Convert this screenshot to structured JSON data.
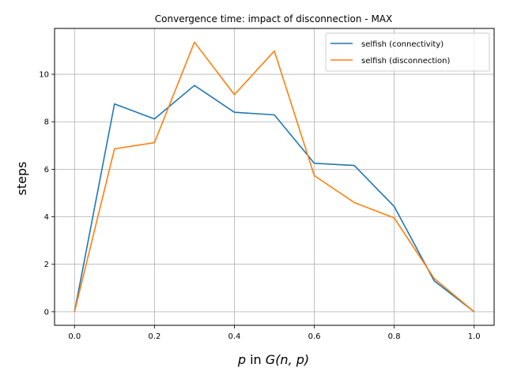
{
  "chart_data": {
    "type": "line",
    "title": "Convergence time: impact of disconnection - MAX",
    "xlabel": {
      "main": "p",
      "mid": " in ",
      "func": "G",
      "args": "(n, p)"
    },
    "ylabel": "steps",
    "xlim": [
      -0.05,
      1.05
    ],
    "ylim": [
      -0.57,
      11.93
    ],
    "xticks": [
      0.0,
      0.2,
      0.4,
      0.6,
      0.8,
      1.0
    ],
    "xtick_labels": [
      "0.0",
      "0.2",
      "0.4",
      "0.6",
      "0.8",
      "1.0"
    ],
    "yticks": [
      0,
      2,
      4,
      6,
      8,
      10
    ],
    "ytick_labels": [
      "0",
      "2",
      "4",
      "6",
      "8",
      "10"
    ],
    "grid": true,
    "legend_position": "upper right",
    "x": [
      0.0,
      0.1,
      0.2,
      0.3,
      0.4,
      0.5,
      0.6,
      0.7,
      0.8,
      0.9,
      1.0
    ],
    "series": [
      {
        "name": "selfish (connectivity)",
        "color": "#1f77b4",
        "values": [
          0.0,
          8.75,
          8.12,
          9.53,
          8.4,
          8.29,
          6.25,
          6.16,
          4.43,
          1.3,
          0.0
        ]
      },
      {
        "name": "selfish (disconnection)",
        "color": "#ff7f0e",
        "values": [
          0.0,
          6.86,
          7.12,
          11.35,
          9.14,
          10.98,
          5.73,
          4.6,
          3.95,
          1.4,
          0.0
        ]
      }
    ]
  }
}
